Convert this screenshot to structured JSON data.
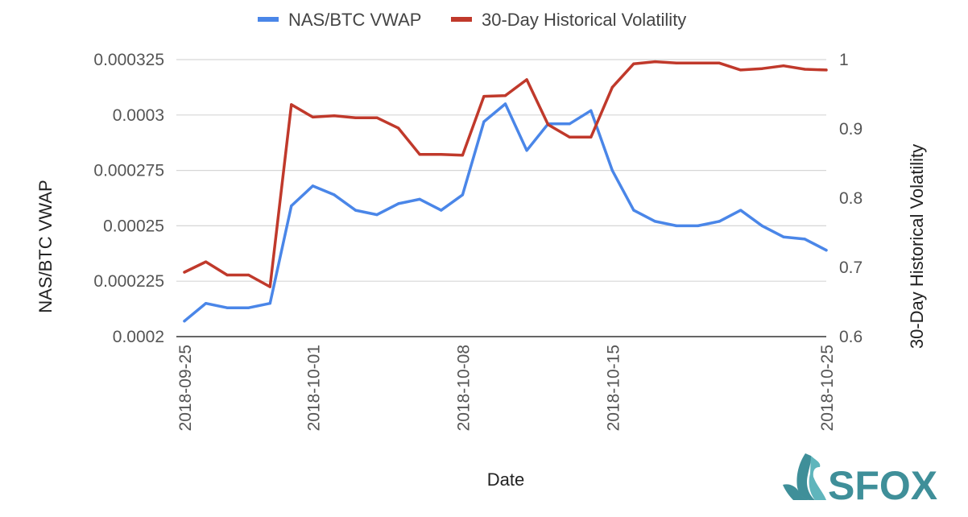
{
  "chart_data": {
    "type": "line",
    "xlabel": "Date",
    "ylabel": "NAS/BTC VWAP",
    "y2label": "30-Day Historical Volatility",
    "x": [
      "2018-09-25",
      "2018-09-26",
      "2018-09-27",
      "2018-09-28",
      "2018-09-29",
      "2018-09-30",
      "2018-10-01",
      "2018-10-02",
      "2018-10-03",
      "2018-10-04",
      "2018-10-05",
      "2018-10-06",
      "2018-10-07",
      "2018-10-08",
      "2018-10-09",
      "2018-10-10",
      "2018-10-11",
      "2018-10-12",
      "2018-10-13",
      "2018-10-14",
      "2018-10-15",
      "2018-10-16",
      "2018-10-17",
      "2018-10-18",
      "2018-10-19",
      "2018-10-20",
      "2018-10-21",
      "2018-10-22",
      "2018-10-23",
      "2018-10-24",
      "2018-10-25"
    ],
    "x_tick_labels": [
      "2018-09-25",
      "2018-10-01",
      "2018-10-08",
      "2018-10-15",
      "2018-10-25"
    ],
    "y_ticks": [
      "0.0002",
      "0.000225",
      "0.00025",
      "0.000275",
      "0.0003",
      "0.000325"
    ],
    "y_lim": [
      0.0002,
      0.000325
    ],
    "y2_ticks": [
      "0.6",
      "0.7",
      "0.8",
      "0.9",
      "1"
    ],
    "y2_lim": [
      0.6,
      1.0
    ],
    "grid": true,
    "legend_position": "top",
    "series": [
      {
        "name": "NAS/BTC VWAP",
        "axis": "left",
        "color": "#4a86e8",
        "values": [
          0.000207,
          0.000215,
          0.000213,
          0.000213,
          0.000215,
          0.000259,
          0.000268,
          0.000264,
          0.000257,
          0.000255,
          0.00026,
          0.000262,
          0.000257,
          0.000264,
          0.000297,
          0.000305,
          0.000284,
          0.000296,
          0.000296,
          0.000302,
          0.000275,
          0.000257,
          0.000252,
          0.00025,
          0.00025,
          0.000252,
          0.000257,
          0.00025,
          0.000245,
          0.000244,
          0.000239
        ]
      },
      {
        "name": "30-Day Historical Volatility",
        "axis": "right",
        "color": "#c0392b",
        "values": [
          0.693,
          0.708,
          0.689,
          0.689,
          0.672,
          0.935,
          0.917,
          0.919,
          0.916,
          0.916,
          0.901,
          0.863,
          0.863,
          0.862,
          0.947,
          0.948,
          0.971,
          0.906,
          0.888,
          0.888,
          0.96,
          0.994,
          0.997,
          0.995,
          0.995,
          0.995,
          0.985,
          0.987,
          0.991,
          0.986,
          0.985
        ]
      }
    ]
  },
  "logo": {
    "text": "SFOX",
    "icon": "fox-icon",
    "color": "#3f8f99"
  }
}
